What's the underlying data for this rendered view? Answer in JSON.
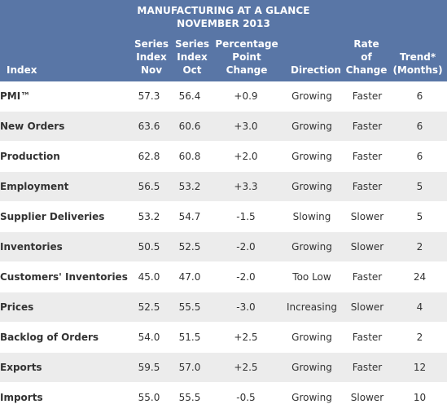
{
  "title": {
    "line1": "MANUFACTURING AT A GLANCE",
    "line2": "NOVEMBER 2013"
  },
  "columns": {
    "index": "Index",
    "nov": [
      "Series",
      "Index",
      "Nov"
    ],
    "oct": [
      "Series",
      "Index",
      "Oct"
    ],
    "change": [
      "Percentage",
      "Point",
      "Change"
    ],
    "direction": "Direction",
    "rate": [
      "Rate",
      "of",
      "Change"
    ],
    "trend": [
      "Trend*",
      "(Months)"
    ]
  },
  "rows": [
    {
      "index": "PMI™",
      "nov": "57.3",
      "oct": "56.4",
      "change": "+0.9",
      "direction": "Growing",
      "rate": "Faster",
      "trend": "6"
    },
    {
      "index": "New Orders",
      "nov": "63.6",
      "oct": "60.6",
      "change": "+3.0",
      "direction": "Growing",
      "rate": "Faster",
      "trend": "6"
    },
    {
      "index": "Production",
      "nov": "62.8",
      "oct": "60.8",
      "change": "+2.0",
      "direction": "Growing",
      "rate": "Faster",
      "trend": "6"
    },
    {
      "index": "Employment",
      "nov": "56.5",
      "oct": "53.2",
      "change": "+3.3",
      "direction": "Growing",
      "rate": "Faster",
      "trend": "5"
    },
    {
      "index": "Supplier Deliveries",
      "nov": "53.2",
      "oct": "54.7",
      "change": "-1.5",
      "direction": "Slowing",
      "rate": "Slower",
      "trend": "5"
    },
    {
      "index": "Inventories",
      "nov": "50.5",
      "oct": "52.5",
      "change": "-2.0",
      "direction": "Growing",
      "rate": "Slower",
      "trend": "2"
    },
    {
      "index": "Customers' Inventories",
      "nov": "45.0",
      "oct": "47.0",
      "change": "-2.0",
      "direction": "Too Low",
      "rate": "Faster",
      "trend": "24"
    },
    {
      "index": "Prices",
      "nov": "52.5",
      "oct": "55.5",
      "change": "-3.0",
      "direction": "Increasing",
      "rate": "Slower",
      "trend": "4"
    },
    {
      "index": "Backlog of Orders",
      "nov": "54.0",
      "oct": "51.5",
      "change": "+2.5",
      "direction": "Growing",
      "rate": "Faster",
      "trend": "2"
    },
    {
      "index": "Exports",
      "nov": "59.5",
      "oct": "57.0",
      "change": "+2.5",
      "direction": "Growing",
      "rate": "Faster",
      "trend": "12"
    },
    {
      "index": "Imports",
      "nov": "55.0",
      "oct": "55.5",
      "change": "-0.5",
      "direction": "Growing",
      "rate": "Slower",
      "trend": "10"
    }
  ],
  "colors": {
    "header_bg": "#5976a6",
    "row_even": "#ffffff",
    "row_odd": "#ececec"
  }
}
